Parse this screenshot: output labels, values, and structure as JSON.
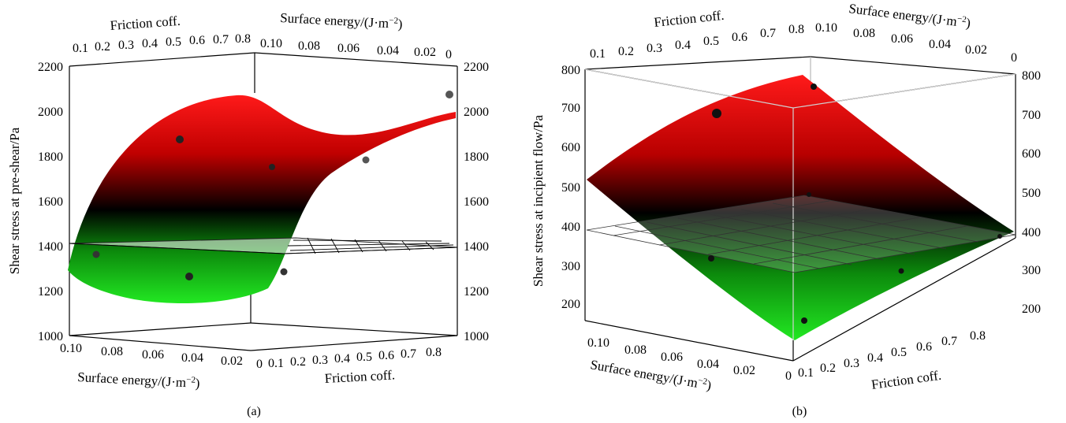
{
  "chart_data": [
    {
      "type": "surface3d",
      "panel_label": "(a)",
      "zlabel": "Shear stress at pre-shear/Pa",
      "zlim": [
        1000,
        2200
      ],
      "z_ticks": [
        "1000",
        "1200",
        "1400",
        "1600",
        "1800",
        "2000",
        "2200"
      ],
      "axes": {
        "friction_label": "Friction coff.",
        "surface_energy_label_main": "Surface energy/(J·m",
        "surface_energy_label_sup": "−2",
        "surface_energy_label_close": ")",
        "friction_ticks": [
          "0.1",
          "0.2",
          "0.3",
          "0.4",
          "0.5",
          "0.6",
          "0.7",
          "0.8"
        ],
        "friction_ticks_bottom": [
          "0",
          "0.1",
          "0.2",
          "0.3",
          "0.4",
          "0.5",
          "0.6",
          "0.7",
          "0.8"
        ],
        "surface_energy_ticks_top": [
          "0.10",
          "0.08",
          "0.06",
          "0.04",
          "0.02",
          "0"
        ],
        "surface_energy_ticks_bottom": [
          "0.10",
          "0.08",
          "0.06",
          "0.04",
          "0.02"
        ]
      },
      "plane_level": 1400,
      "points": [
        {
          "friction": 0.3,
          "surface_energy": 0.06,
          "z": 1860
        },
        {
          "friction": 0.5,
          "surface_energy": 0.04,
          "z": 1740
        },
        {
          "friction": 0.7,
          "surface_energy": 0.02,
          "z": 1780
        },
        {
          "friction": 0.8,
          "surface_energy": 0.0,
          "z": 2060
        },
        {
          "friction": 0.1,
          "surface_energy": 0.1,
          "z": 1350
        },
        {
          "friction": 0.3,
          "surface_energy": 0.08,
          "z": 1260
        },
        {
          "friction": 0.5,
          "surface_energy": 0.04,
          "z": 1280
        }
      ]
    },
    {
      "type": "surface3d",
      "panel_label": "(b)",
      "zlabel": "Shear stress at incipient flow/Pa",
      "zlim": [
        150,
        800
      ],
      "z_ticks": [
        "200",
        "300",
        "400",
        "500",
        "600",
        "700",
        "800"
      ],
      "axes": {
        "friction_label": "Friction coff.",
        "surface_energy_label_main": "Surface energy/(J·m",
        "surface_energy_label_sup": "−2",
        "surface_energy_label_close": ")",
        "friction_ticks": [
          "0.1",
          "0.2",
          "0.3",
          "0.4",
          "0.5",
          "0.6",
          "0.7",
          "0.8"
        ],
        "friction_ticks_bottom": [
          "0",
          "0.1",
          "0.2",
          "0.3",
          "0.4",
          "0.5",
          "0.6",
          "0.7",
          "0.8"
        ],
        "surface_energy_ticks_top": [
          "0.10",
          "0.08",
          "0.06",
          "0.04",
          "0.02",
          "0"
        ],
        "surface_energy_ticks_bottom": [
          "0.10",
          "0.08",
          "0.06",
          "0.04",
          "0.02"
        ]
      },
      "plane_level": 390,
      "points": [
        {
          "friction": 0.4,
          "surface_energy": 0.08,
          "z": 685
        },
        {
          "friction": 0.8,
          "surface_energy": 0.1,
          "z": 755
        },
        {
          "friction": 0.5,
          "surface_energy": 0.04,
          "z": 475
        },
        {
          "friction": 0.3,
          "surface_energy": 0.06,
          "z": 315
        },
        {
          "friction": 0.7,
          "surface_energy": 0.02,
          "z": 285
        },
        {
          "friction": 0.1,
          "surface_energy": 0.0,
          "z": 155
        },
        {
          "friction": 0.8,
          "surface_energy": 0.0,
          "z": 370
        }
      ]
    }
  ]
}
